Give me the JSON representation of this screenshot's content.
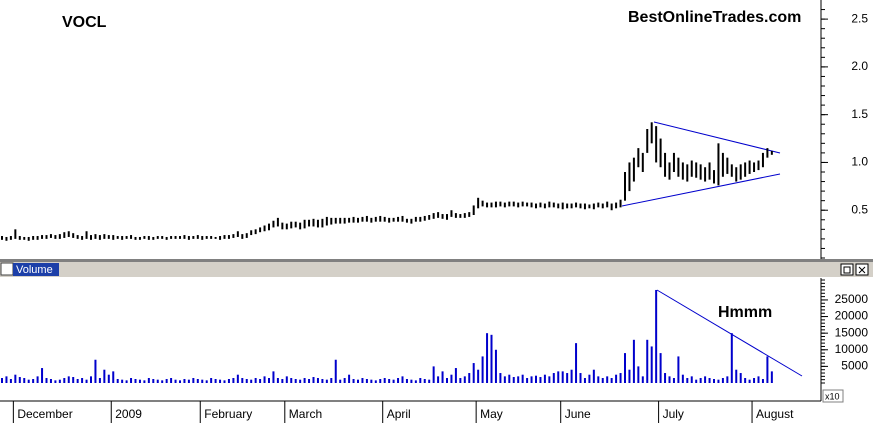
{
  "chart_data": [
    {
      "type": "ohlc",
      "title": "VOCL",
      "subtitle": "BestOnlineTrades.com",
      "color": "#000000",
      "high": [
        0.23,
        0.22,
        0.23,
        0.3,
        0.23,
        0.22,
        0.22,
        0.23,
        0.23,
        0.24,
        0.24,
        0.25,
        0.24,
        0.25,
        0.27,
        0.28,
        0.26,
        0.24,
        0.23,
        0.28,
        0.24,
        0.25,
        0.24,
        0.25,
        0.24,
        0.24,
        0.23,
        0.23,
        0.23,
        0.24,
        0.22,
        0.22,
        0.23,
        0.23,
        0.22,
        0.23,
        0.23,
        0.22,
        0.23,
        0.23,
        0.23,
        0.24,
        0.23,
        0.23,
        0.24,
        0.23,
        0.23,
        0.23,
        0.22,
        0.23,
        0.24,
        0.24,
        0.25,
        0.28,
        0.25,
        0.26,
        0.29,
        0.3,
        0.32,
        0.34,
        0.36,
        0.39,
        0.42,
        0.37,
        0.36,
        0.38,
        0.38,
        0.37,
        0.4,
        0.4,
        0.41,
        0.4,
        0.41,
        0.43,
        0.42,
        0.42,
        0.42,
        0.42,
        0.42,
        0.43,
        0.42,
        0.43,
        0.44,
        0.42,
        0.43,
        0.44,
        0.43,
        0.42,
        0.42,
        0.43,
        0.44,
        0.41,
        0.41,
        0.43,
        0.43,
        0.44,
        0.45,
        0.47,
        0.48,
        0.46,
        0.46,
        0.5,
        0.47,
        0.46,
        0.47,
        0.48,
        0.55,
        0.63,
        0.6,
        0.58,
        0.58,
        0.59,
        0.59,
        0.58,
        0.59,
        0.59,
        0.58,
        0.59,
        0.58,
        0.58,
        0.57,
        0.58,
        0.57,
        0.59,
        0.58,
        0.57,
        0.58,
        0.57,
        0.57,
        0.58,
        0.57,
        0.57,
        0.56,
        0.57,
        0.58,
        0.57,
        0.59,
        0.57,
        0.58,
        0.61,
        0.9,
        1.0,
        1.05,
        1.15,
        1.1,
        1.35,
        1.42,
        1.38,
        1.25,
        1.1,
        1.0,
        1.1,
        1.05,
        1.0,
        0.98,
        1.02,
        1.0,
        0.98,
        0.95,
        1.0,
        0.92,
        1.2,
        1.1,
        1.05,
        0.98,
        0.95,
        0.98,
        1.0,
        1.02,
        1.0,
        1.02,
        1.1,
        1.15,
        1.12
      ],
      "low": [
        0.19,
        0.18,
        0.19,
        0.2,
        0.19,
        0.19,
        0.18,
        0.19,
        0.19,
        0.2,
        0.2,
        0.21,
        0.2,
        0.2,
        0.21,
        0.22,
        0.21,
        0.2,
        0.19,
        0.2,
        0.19,
        0.2,
        0.19,
        0.2,
        0.2,
        0.19,
        0.2,
        0.19,
        0.2,
        0.2,
        0.19,
        0.19,
        0.2,
        0.19,
        0.19,
        0.2,
        0.2,
        0.19,
        0.2,
        0.2,
        0.2,
        0.2,
        0.19,
        0.2,
        0.2,
        0.19,
        0.2,
        0.2,
        0.2,
        0.19,
        0.2,
        0.2,
        0.21,
        0.22,
        0.2,
        0.21,
        0.24,
        0.25,
        0.27,
        0.28,
        0.29,
        0.32,
        0.33,
        0.3,
        0.3,
        0.31,
        0.32,
        0.3,
        0.31,
        0.33,
        0.33,
        0.32,
        0.32,
        0.34,
        0.35,
        0.36,
        0.36,
        0.36,
        0.37,
        0.37,
        0.37,
        0.38,
        0.38,
        0.37,
        0.38,
        0.38,
        0.38,
        0.37,
        0.38,
        0.38,
        0.38,
        0.37,
        0.36,
        0.38,
        0.38,
        0.39,
        0.4,
        0.41,
        0.42,
        0.41,
        0.4,
        0.43,
        0.42,
        0.42,
        0.42,
        0.43,
        0.45,
        0.52,
        0.54,
        0.53,
        0.53,
        0.53,
        0.54,
        0.53,
        0.54,
        0.54,
        0.53,
        0.54,
        0.54,
        0.53,
        0.52,
        0.53,
        0.52,
        0.53,
        0.53,
        0.52,
        0.51,
        0.52,
        0.52,
        0.53,
        0.52,
        0.51,
        0.52,
        0.51,
        0.53,
        0.52,
        0.53,
        0.5,
        0.52,
        0.53,
        0.6,
        0.7,
        0.8,
        0.95,
        0.9,
        1.1,
        1.2,
        1.0,
        0.95,
        0.85,
        0.82,
        0.9,
        0.85,
        0.82,
        0.8,
        0.85,
        0.84,
        0.82,
        0.8,
        0.82,
        0.78,
        0.76,
        0.85,
        0.88,
        0.85,
        0.8,
        0.82,
        0.85,
        0.88,
        0.9,
        0.92,
        0.95,
        1.05,
        1.08
      ],
      "ylim": [
        0,
        2.7
      ],
      "yticks": [
        0.5,
        {
          "value": 1.0,
          "label": "1.0"
        },
        1.5,
        {
          "value": 2.0,
          "label": "2.0"
        },
        2.5
      ]
    },
    {
      "type": "bar",
      "title": "Volume",
      "annotation": "Hmmm",
      "axis_multiplier": "x10",
      "color": "#0000cc",
      "categories": [
        null,
        null,
        null,
        "December",
        null,
        null,
        null,
        null,
        null,
        null,
        null,
        null,
        null,
        null,
        null,
        null,
        null,
        null,
        null,
        null,
        null,
        null,
        null,
        null,
        null,
        "2009",
        null,
        null,
        null,
        null,
        null,
        null,
        null,
        null,
        null,
        null,
        null,
        null,
        null,
        null,
        null,
        null,
        null,
        null,
        null,
        "February",
        null,
        null,
        null,
        null,
        null,
        null,
        null,
        null,
        null,
        null,
        null,
        null,
        null,
        null,
        null,
        null,
        null,
        null,
        "March",
        null,
        null,
        null,
        null,
        null,
        null,
        null,
        null,
        null,
        null,
        null,
        null,
        null,
        null,
        null,
        null,
        null,
        null,
        null,
        null,
        null,
        "April",
        null,
        null,
        null,
        null,
        null,
        null,
        null,
        null,
        null,
        null,
        null,
        null,
        null,
        null,
        null,
        null,
        null,
        null,
        null,
        null,
        "May",
        null,
        null,
        null,
        null,
        null,
        null,
        null,
        null,
        null,
        null,
        null,
        null,
        null,
        null,
        null,
        null,
        null,
        null,
        "June",
        null,
        null,
        null,
        null,
        null,
        null,
        null,
        null,
        null,
        null,
        null,
        null,
        null,
        null,
        null,
        null,
        null,
        null,
        null,
        null,
        null,
        "July",
        null,
        null,
        null,
        null,
        null,
        null,
        null,
        null,
        null,
        null,
        null,
        null,
        null,
        null,
        null,
        null,
        null,
        null,
        null,
        null,
        "August",
        null,
        null,
        null,
        null
      ],
      "values": [
        1500,
        2000,
        1200,
        2500,
        1800,
        1500,
        1000,
        1200,
        2000,
        4500,
        1500,
        1200,
        800,
        1000,
        1500,
        2000,
        1800,
        1200,
        1500,
        1000,
        2000,
        7000,
        1500,
        4000,
        2500,
        3500,
        1200,
        1000,
        800,
        1500,
        1200,
        1000,
        800,
        1500,
        1200,
        1000,
        800,
        1200,
        1500,
        1000,
        800,
        1200,
        1000,
        1500,
        1200,
        1000,
        800,
        1500,
        1200,
        1000,
        800,
        1200,
        1500,
        2500,
        1500,
        1200,
        1000,
        1500,
        1200,
        2000,
        1500,
        3500,
        1500,
        1200,
        2000,
        1500,
        1200,
        1000,
        1500,
        1200,
        1800,
        1500,
        1200,
        1000,
        1500,
        7000,
        1000,
        1500,
        2500,
        1200,
        1000,
        1500,
        1200,
        1000,
        800,
        1200,
        1500,
        1200,
        1000,
        1500,
        2000,
        1200,
        1000,
        800,
        1500,
        1200,
        1000,
        5000,
        2000,
        3500,
        1500,
        2500,
        4500,
        1500,
        2000,
        3000,
        6000,
        4000,
        8000,
        15000,
        14500,
        10000,
        3000,
        2000,
        2500,
        1800,
        2000,
        2500,
        1500,
        2000,
        2200,
        1800,
        2500,
        2000,
        3000,
        3500,
        3500,
        3000,
        4000,
        12000,
        3000,
        1500,
        2500,
        4000,
        2000,
        1500,
        2000,
        1500,
        2500,
        3000,
        9000,
        4000,
        13000,
        5000,
        2000,
        13000,
        11000,
        28000,
        9000,
        3000,
        2000,
        1500,
        8000,
        2500,
        1500,
        2000,
        1000,
        1500,
        2000,
        1500,
        1200,
        1000,
        1500,
        2000,
        15000,
        4000,
        3000,
        1500,
        1000,
        1500,
        2000,
        1200,
        8000,
        3500
      ],
      "ylim": [
        0,
        31000
      ],
      "yticks": [
        5000,
        10000,
        15000,
        20000,
        25000
      ]
    }
  ]
}
